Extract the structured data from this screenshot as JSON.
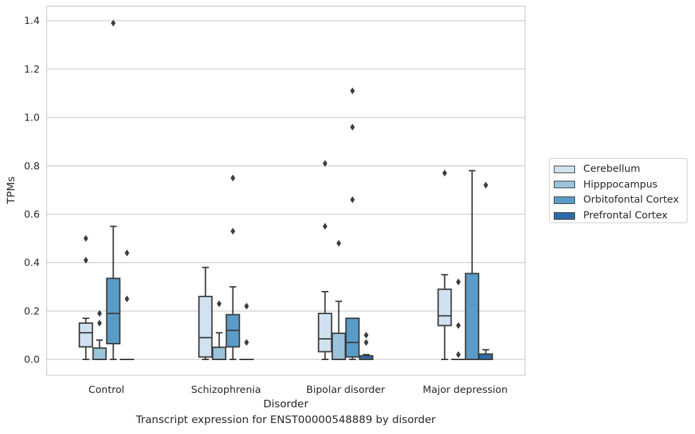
{
  "chart_data": {
    "type": "box",
    "xlabel": "Disorder",
    "ylabel": "TPMs",
    "caption": "Transcript expression for ENST00000548889 by disorder",
    "categories": [
      "Control",
      "Schizophrenia",
      "Bipolar disorder",
      "Major depression"
    ],
    "ylim": [
      -0.065,
      1.46
    ],
    "yticks": [
      0.0,
      0.2,
      0.4,
      0.6,
      0.8,
      1.0,
      1.2,
      1.4
    ],
    "ytick_labels": [
      "0.0",
      "0.2",
      "0.4",
      "0.6",
      "0.8",
      "1.0",
      "1.2",
      "1.4"
    ],
    "grid": "horizontal",
    "legend_position": "right",
    "series": [
      {
        "name": "Cerebellum",
        "color": "#d1e1f0",
        "boxes": [
          {
            "whisker_low": 0.0,
            "q1": 0.052,
            "median": 0.11,
            "q3": 0.15,
            "whisker_high": 0.17,
            "outliers": [
              0.41,
              0.5
            ]
          },
          {
            "whisker_low": 0.0,
            "q1": 0.01,
            "median": 0.09,
            "q3": 0.26,
            "whisker_high": 0.38,
            "outliers": []
          },
          {
            "whisker_low": 0.0,
            "q1": 0.032,
            "median": 0.085,
            "q3": 0.19,
            "whisker_high": 0.28,
            "outliers": [
              0.55,
              0.81
            ]
          },
          {
            "whisker_low": 0.0,
            "q1": 0.14,
            "median": 0.18,
            "q3": 0.29,
            "whisker_high": 0.35,
            "outliers": [
              0.77
            ]
          }
        ]
      },
      {
        "name": "Hipppocampus",
        "color": "#9bc3dc",
        "boxes": [
          {
            "whisker_low": 0.0,
            "q1": 0.0,
            "median": 0.0,
            "q3": 0.047,
            "whisker_high": 0.08,
            "outliers": [
              0.15,
              0.19
            ]
          },
          {
            "whisker_low": 0.0,
            "q1": 0.0,
            "median": 0.0,
            "q3": 0.05,
            "whisker_high": 0.11,
            "outliers": [
              0.23
            ]
          },
          {
            "whisker_low": 0.0,
            "q1": 0.0,
            "median": 0.0,
            "q3": 0.108,
            "whisker_high": 0.24,
            "outliers": [
              0.48
            ]
          },
          {
            "whisker_low": 0.0,
            "q1": 0.0,
            "median": 0.0,
            "q3": 0.0,
            "whisker_high": 0.0,
            "outliers": [
              0.02,
              0.14,
              0.32
            ]
          }
        ]
      },
      {
        "name": "Orbitofontal Cortex",
        "color": "#5a9cc8",
        "boxes": [
          {
            "whisker_low": 0.0,
            "q1": 0.065,
            "median": 0.19,
            "q3": 0.335,
            "whisker_high": 0.55,
            "outliers": [
              1.39
            ]
          },
          {
            "whisker_low": 0.0,
            "q1": 0.052,
            "median": 0.12,
            "q3": 0.185,
            "whisker_high": 0.3,
            "outliers": [
              0.53,
              0.75
            ]
          },
          {
            "whisker_low": 0.0,
            "q1": 0.01,
            "median": 0.07,
            "q3": 0.17,
            "whisker_high": 0.17,
            "outliers": [
              0.66,
              0.96,
              1.11
            ]
          },
          {
            "whisker_low": 0.0,
            "q1": 0.0,
            "median": 0.0,
            "q3": 0.355,
            "whisker_high": 0.78,
            "outliers": []
          }
        ]
      },
      {
        "name": "Prefrontal Cortex",
        "color": "#2e6ba6",
        "boxes": [
          {
            "whisker_low": 0.0,
            "q1": 0.0,
            "median": 0.0,
            "q3": 0.0,
            "whisker_high": 0.0,
            "outliers": [
              0.25,
              0.44
            ]
          },
          {
            "whisker_low": 0.0,
            "q1": 0.0,
            "median": 0.0,
            "q3": 0.0,
            "whisker_high": 0.0,
            "outliers": [
              0.07,
              0.22
            ]
          },
          {
            "whisker_low": 0.0,
            "q1": 0.0,
            "median": 0.0,
            "q3": 0.015,
            "whisker_high": 0.02,
            "outliers": [
              0.07,
              0.1
            ]
          },
          {
            "whisker_low": 0.0,
            "q1": 0.0,
            "median": 0.0,
            "q3": 0.022,
            "whisker_high": 0.04,
            "outliers": [
              0.72
            ]
          }
        ]
      }
    ]
  }
}
